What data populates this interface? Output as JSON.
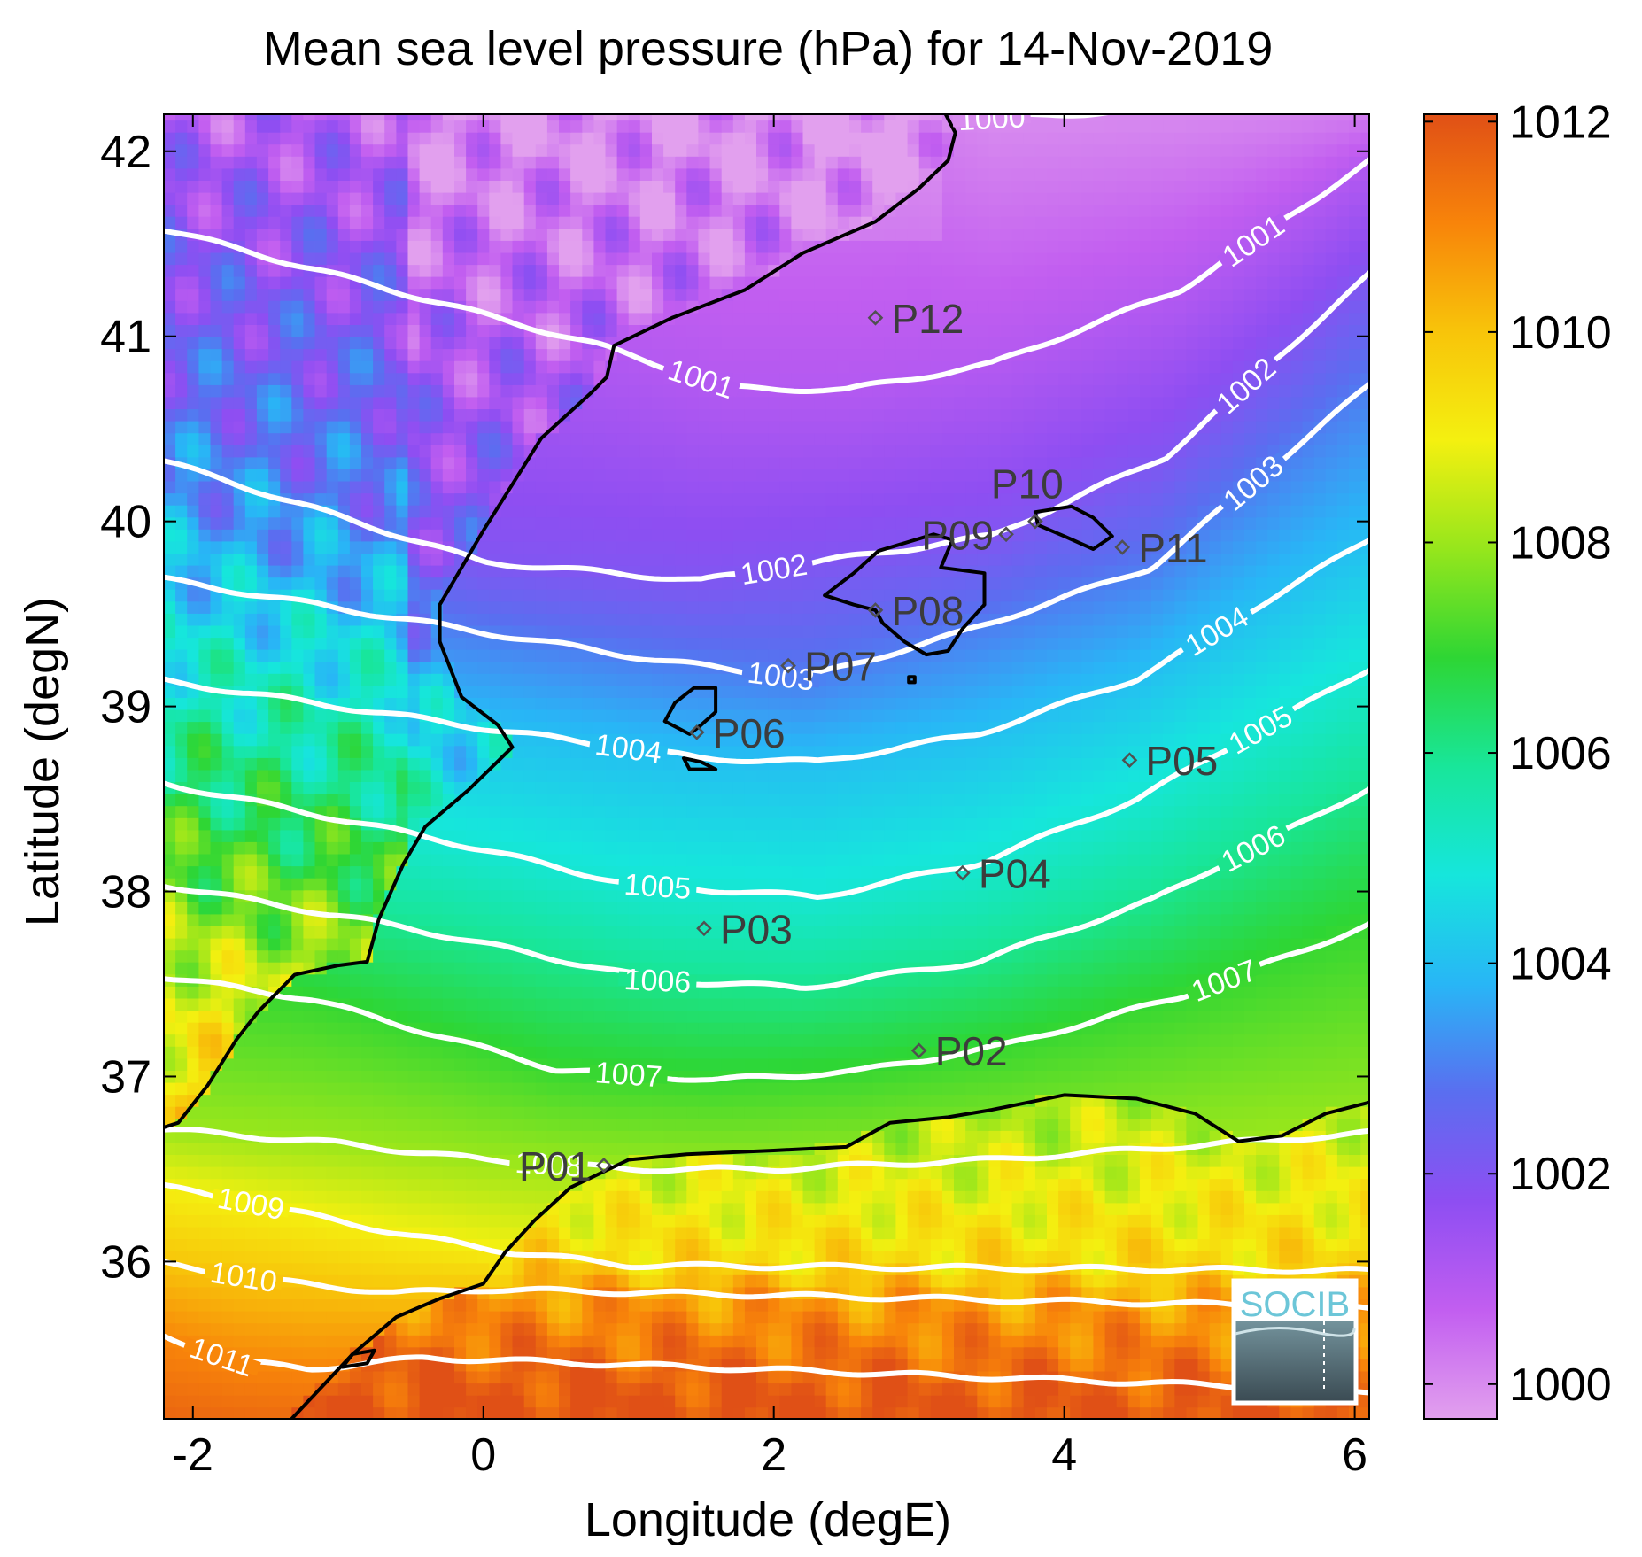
{
  "title": "Mean sea level pressure (hPa) for 14-Nov-2019",
  "x_axis": {
    "label": "Longitude (degE)",
    "range": [
      -2.2,
      6.1
    ],
    "ticks": [
      {
        "v": -2,
        "t": "-2"
      },
      {
        "v": 0,
        "t": "0"
      },
      {
        "v": 2,
        "t": "2"
      },
      {
        "v": 4,
        "t": "4"
      },
      {
        "v": 6,
        "t": "6"
      }
    ]
  },
  "y_axis": {
    "label": "Latitude (degN)",
    "range": [
      35.15,
      42.2
    ],
    "ticks": [
      {
        "v": 36,
        "t": "36"
      },
      {
        "v": 37,
        "t": "37"
      },
      {
        "v": 38,
        "t": "38"
      },
      {
        "v": 39,
        "t": "39"
      },
      {
        "v": 40,
        "t": "40"
      },
      {
        "v": 41,
        "t": "41"
      },
      {
        "v": 42,
        "t": "42"
      }
    ]
  },
  "colorbar": {
    "range": [
      999.67,
      1012.07
    ],
    "ticks": [
      {
        "v": 1000,
        "t": "1000"
      },
      {
        "v": 1002,
        "t": "1002"
      },
      {
        "v": 1004,
        "t": "1004"
      },
      {
        "v": 1006,
        "t": "1006"
      },
      {
        "v": 1008,
        "t": "1008"
      },
      {
        "v": 1010,
        "t": "1010"
      },
      {
        "v": 1012,
        "t": "1012"
      }
    ],
    "colors": [
      "#e2a0ee",
      "#c25ef0",
      "#8e4ef2",
      "#5a6ef0",
      "#28b6f6",
      "#16e6dc",
      "#18e69a",
      "#2ed634",
      "#96e61c",
      "#f4f010",
      "#f8c40a",
      "#f8840a",
      "#e05016"
    ]
  },
  "contours": {
    "levels": [
      1000,
      1001,
      1002,
      1003,
      1004,
      1005,
      1006,
      1007,
      1008,
      1009,
      1010,
      1011
    ],
    "color": "#ffffff"
  },
  "points": [
    {
      "label": "P01",
      "lon": 0.83,
      "lat": 36.52
    },
    {
      "label": "P02",
      "lon": 3.0,
      "lat": 37.14
    },
    {
      "label": "P03",
      "lon": 1.52,
      "lat": 37.8
    },
    {
      "label": "P04",
      "lon": 3.3,
      "lat": 38.1
    },
    {
      "label": "P05",
      "lon": 4.45,
      "lat": 38.71
    },
    {
      "label": "P06",
      "lon": 1.47,
      "lat": 38.86
    },
    {
      "label": "P07",
      "lon": 2.1,
      "lat": 39.22
    },
    {
      "label": "P08",
      "lon": 2.7,
      "lat": 39.52
    },
    {
      "label": "P09",
      "lon": 3.6,
      "lat": 39.93
    },
    {
      "label": "P10",
      "lon": 3.8,
      "lat": 40.0
    },
    {
      "label": "P11",
      "lon": 4.4,
      "lat": 39.86
    },
    {
      "label": "P12",
      "lon": 2.7,
      "lat": 41.1
    }
  ],
  "logo": {
    "text": "SOCIB",
    "text_color": "#6cc6d8",
    "border_color": "#ffffff"
  },
  "colors": {
    "coastline": "#000000",
    "marker": "#505050",
    "label": "#3c3c3c"
  },
  "chart_data": {
    "type": "heatmap",
    "title": "Mean sea level pressure (hPa) for 14-Nov-2019",
    "xlabel": "Longitude (degE)",
    "ylabel": "Latitude (degN)",
    "xlim": [
      -2.2,
      6.1
    ],
    "ylim": [
      35.15,
      42.2
    ],
    "colorbar_range": [
      999.67,
      1012.07
    ],
    "contour_levels": [
      1000,
      1001,
      1002,
      1003,
      1004,
      1005,
      1006,
      1007,
      1008,
      1009,
      1010,
      1011
    ],
    "legend": "colorbar at right"
  }
}
